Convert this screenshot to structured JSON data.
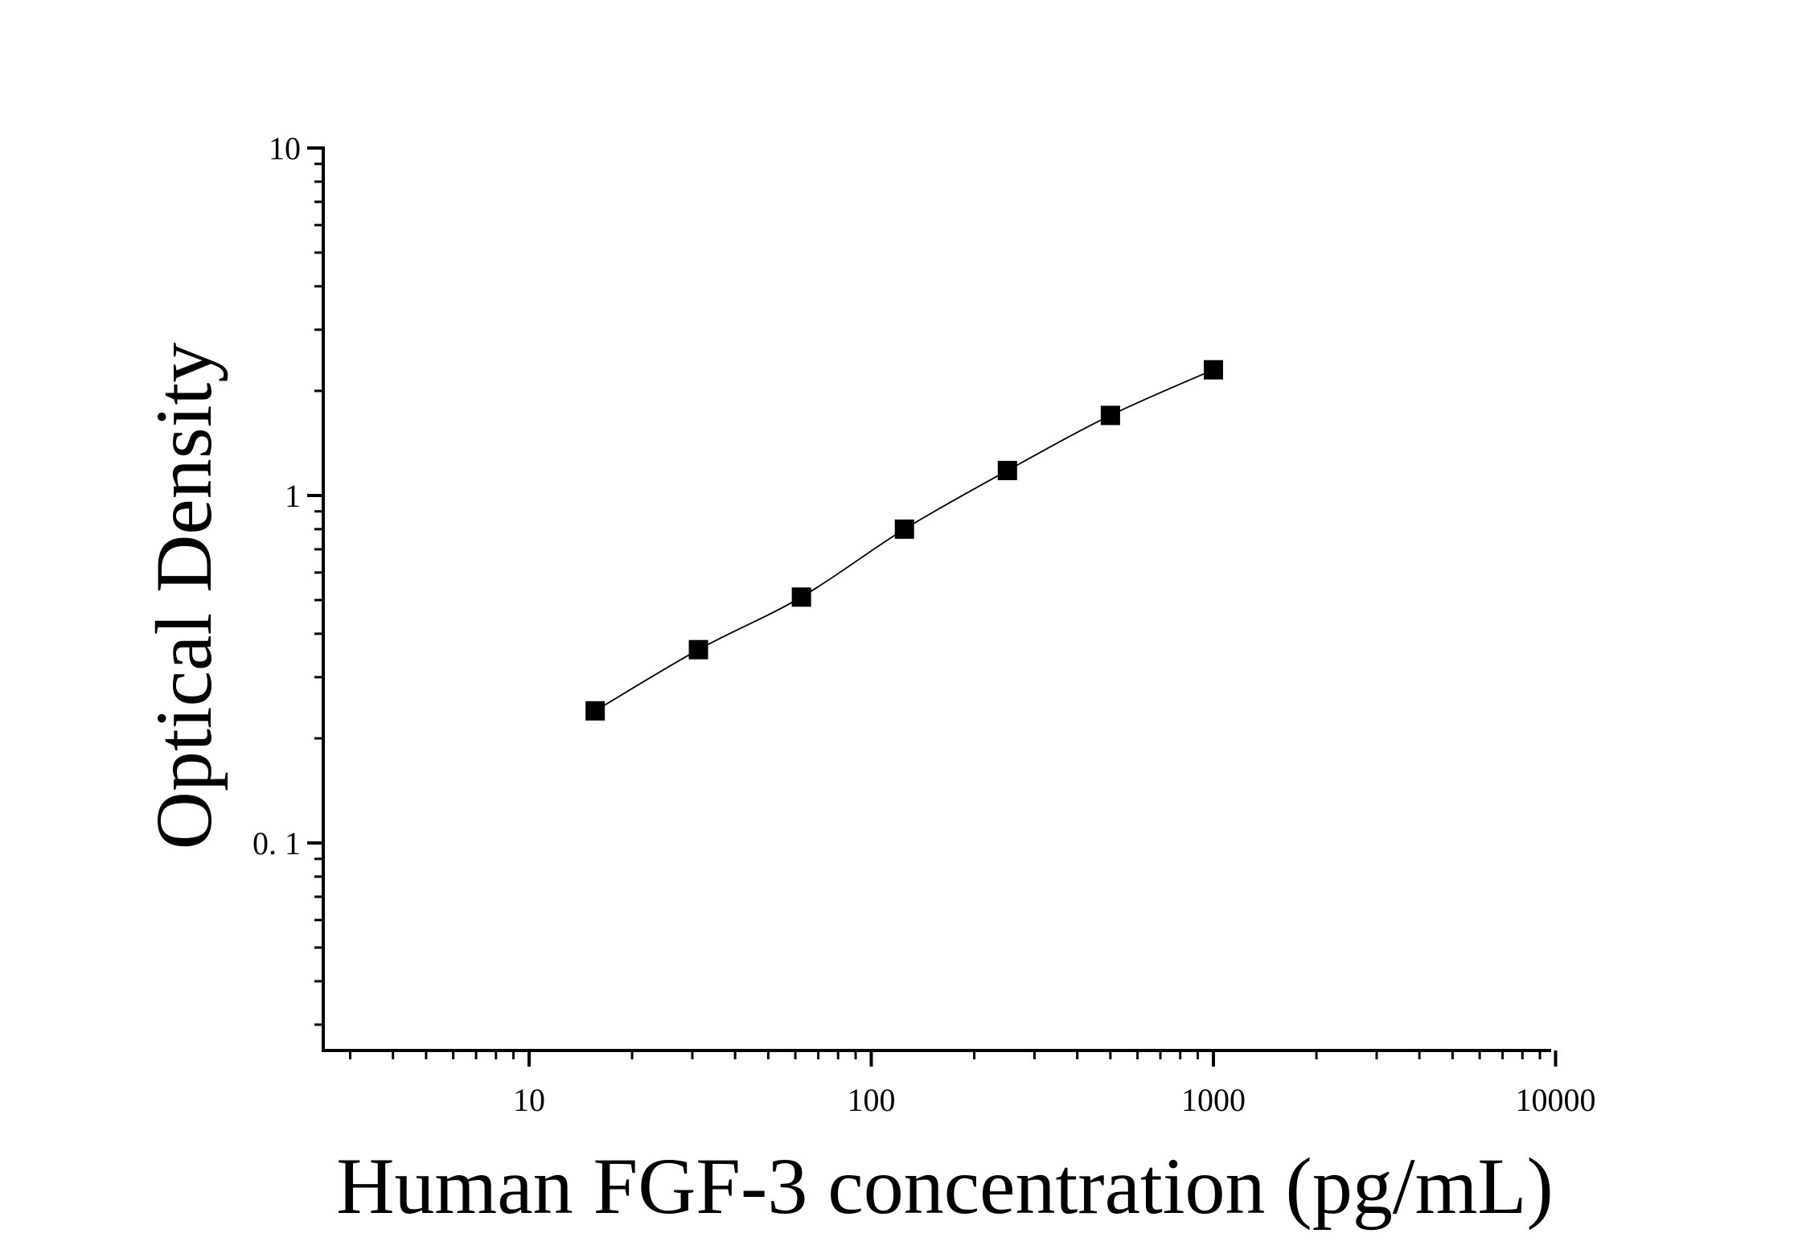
{
  "chart_data": {
    "type": "scatter",
    "title": "",
    "xlabel": "Human FGF-3 concentration (pg/mL)",
    "ylabel": "Optical Density",
    "x_scale": "log",
    "y_scale": "log",
    "xlim": [
      2.5,
      10000
    ],
    "ylim": [
      0.025,
      10
    ],
    "x_ticks": [
      {
        "value": 10,
        "label": "10"
      },
      {
        "value": 100,
        "label": "100"
      },
      {
        "value": 1000,
        "label": "1000"
      },
      {
        "value": 10000,
        "label": "10000"
      }
    ],
    "y_ticks": [
      {
        "value": 0.1,
        "label": "0. 1"
      },
      {
        "value": 1,
        "label": "1"
      },
      {
        "value": 10,
        "label": "10"
      }
    ],
    "grid": false,
    "legend": "none",
    "marker_color": "#000000",
    "marker_shape": "square",
    "series": [
      {
        "x": [
          15.6,
          31.25,
          62.5,
          125,
          250,
          500,
          1000
        ],
        "y": [
          0.24,
          0.36,
          0.51,
          0.8,
          1.18,
          1.7,
          2.3
        ],
        "fit_line": true
      }
    ]
  }
}
